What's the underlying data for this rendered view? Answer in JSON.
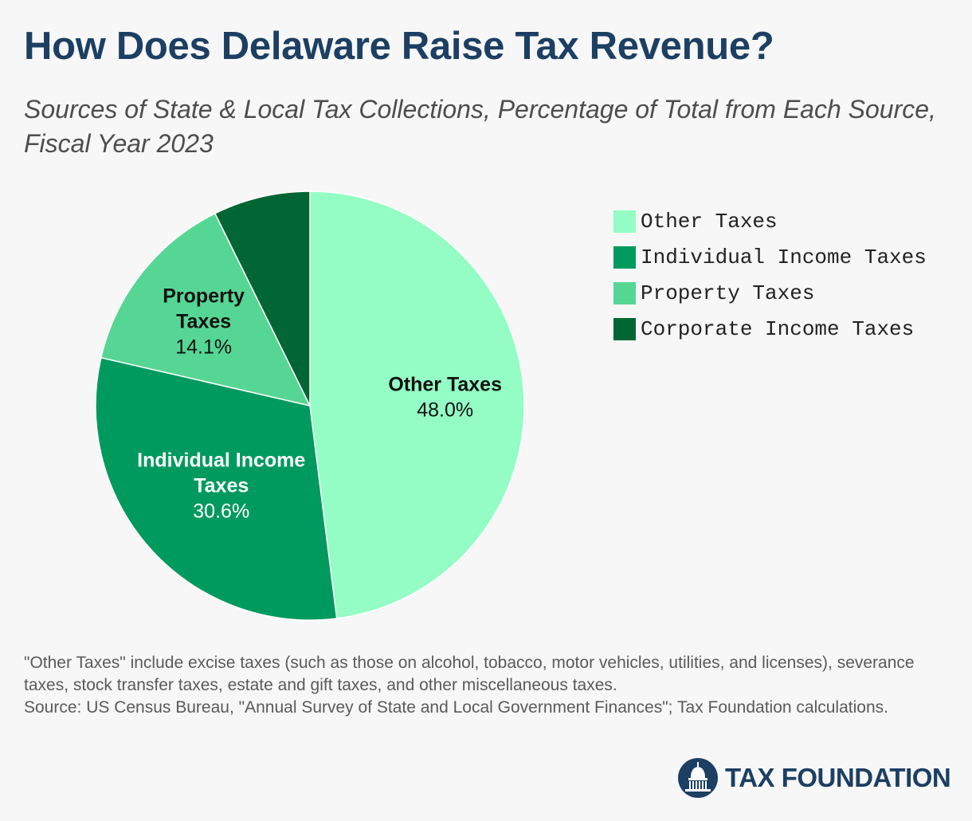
{
  "header": {
    "title": "How Does Delaware Raise Tax Revenue?",
    "subtitle": "Sources of State & Local Tax Collections, Percentage of Total from Each Source, Fiscal Year 2023"
  },
  "chart_data": {
    "type": "pie",
    "title": "How Does Delaware Raise Tax Revenue?",
    "subtitle": "Sources of State & Local Tax Collections, Percentage of Total from Each Source, Fiscal Year 2023",
    "slices": [
      {
        "name": "Other Taxes",
        "value": 48.0,
        "value_label": "48.0%",
        "label_lines": [
          "Other Taxes"
        ],
        "color": "#93fdc5",
        "text_color": "#111111",
        "show_label": true
      },
      {
        "name": "Individual Income Taxes",
        "value": 30.6,
        "value_label": "30.6%",
        "label_lines": [
          "Individual Income",
          "Taxes"
        ],
        "color": "#019a5e",
        "text_color": "#ffffff",
        "show_label": true
      },
      {
        "name": "Property Taxes",
        "value": 14.1,
        "value_label": "14.1%",
        "label_lines": [
          "Property",
          "Taxes"
        ],
        "color": "#56d694",
        "text_color": "#111111",
        "show_label": true
      },
      {
        "name": "Corporate Income Taxes",
        "value": 7.3,
        "value_label": "",
        "label_lines": [],
        "color": "#006633",
        "text_color": "#ffffff",
        "show_label": false
      }
    ],
    "legend": {
      "position": "right",
      "items": [
        "Other Taxes",
        "Individual Income Taxes",
        "Property Taxes",
        "Corporate Income Taxes"
      ]
    }
  },
  "notes": {
    "line1": "\"Other Taxes\" include excise taxes (such as those on alcohol, tobacco, motor vehicles, utilities, and licenses), severance taxes, stock transfer taxes, estate and gift taxes, and other miscellaneous taxes.",
    "line2": "Source: US Census Bureau, \"Annual Survey of State and Local Government Finances\"; Tax Foundation calculations."
  },
  "logo": {
    "text": "TAX FOUNDATION",
    "color": "#1c3f63"
  }
}
